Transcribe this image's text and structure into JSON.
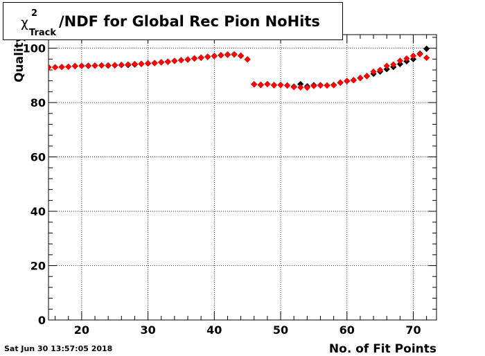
{
  "chart_data": {
    "type": "scatter",
    "title": {
      "symbol": "χ",
      "superscript": "2",
      "subscript": "Track",
      "text": "/NDF for Global Rec Pion NoHits"
    },
    "xlabel": "No. of Fit Points",
    "ylabel": "Quality",
    "xlim": [
      15,
      73.5
    ],
    "ylim": [
      0,
      105
    ],
    "x_ticks": [
      20,
      30,
      40,
      50,
      60,
      70
    ],
    "y_ticks": [
      0,
      20,
      40,
      60,
      80,
      100
    ],
    "grid": true,
    "marker": "diamond",
    "series": [
      {
        "color": "#000000",
        "x": [
          15,
          16,
          17,
          18,
          19,
          20,
          21,
          22,
          23,
          24,
          25,
          26,
          27,
          28,
          29,
          30,
          31,
          32,
          33,
          34,
          35,
          36,
          37,
          38,
          39,
          40,
          41,
          42,
          43,
          44,
          45,
          46,
          47,
          48,
          49,
          50,
          51,
          52,
          53,
          54,
          55,
          56,
          57,
          58,
          59,
          60,
          61,
          62,
          63,
          64,
          65,
          66,
          67,
          68,
          69,
          70,
          71,
          72
        ],
        "values": [
          93.0,
          93.0,
          93.1,
          93.2,
          93.4,
          93.5,
          93.5,
          93.6,
          93.7,
          93.6,
          93.7,
          93.8,
          93.8,
          94.0,
          94.2,
          94.4,
          94.5,
          94.8,
          95.0,
          95.3,
          95.6,
          95.8,
          96.2,
          96.5,
          96.8,
          97.1,
          97.4,
          97.6,
          97.7,
          97.2,
          95.9,
          86.7,
          86.5,
          86.8,
          86.4,
          86.5,
          86.3,
          85.9,
          86.8,
          86.0,
          86.4,
          86.4,
          86.3,
          86.5,
          87.3,
          87.9,
          88.2,
          89.0,
          89.7,
          90.6,
          91.4,
          92.3,
          93.1,
          94.2,
          95.2,
          96.0,
          98.0,
          99.8
        ]
      },
      {
        "color": "#ff0000",
        "x": [
          15,
          16,
          17,
          18,
          19,
          20,
          21,
          22,
          23,
          24,
          25,
          26,
          27,
          28,
          29,
          30,
          31,
          32,
          33,
          34,
          35,
          36,
          37,
          38,
          39,
          40,
          41,
          42,
          43,
          44,
          45,
          46,
          47,
          48,
          49,
          50,
          51,
          52,
          53,
          54,
          55,
          56,
          57,
          58,
          59,
          60,
          61,
          62,
          63,
          64,
          65,
          66,
          67,
          68,
          69,
          70,
          71,
          72
        ],
        "values": [
          93.0,
          93.0,
          93.1,
          93.2,
          93.5,
          93.5,
          93.6,
          93.6,
          93.7,
          93.7,
          93.8,
          93.9,
          94.0,
          94.2,
          94.3,
          94.5,
          94.6,
          94.9,
          95.1,
          95.4,
          95.6,
          95.9,
          96.3,
          96.6,
          96.9,
          97.2,
          97.5,
          97.7,
          97.8,
          97.3,
          95.9,
          86.8,
          86.6,
          86.8,
          86.5,
          86.5,
          86.3,
          85.7,
          85.6,
          85.5,
          86.1,
          86.3,
          86.3,
          86.4,
          87.4,
          88.0,
          88.3,
          89.1,
          89.8,
          91.4,
          92.0,
          93.5,
          94.0,
          95.4,
          96.2,
          97.2,
          97.8,
          96.5
        ]
      }
    ]
  },
  "footer": {
    "timestamp": "Sat Jun 30 13:57:05 2018"
  }
}
